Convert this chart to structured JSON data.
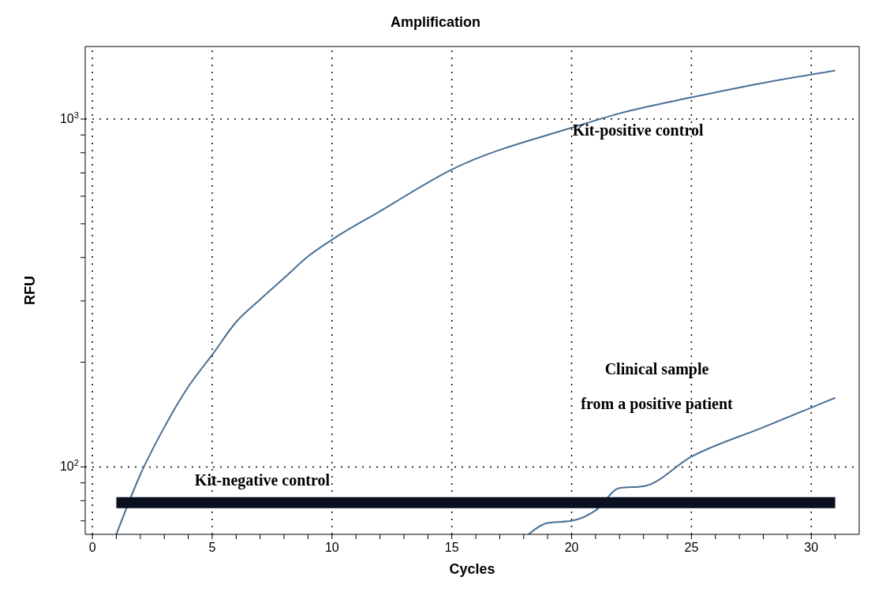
{
  "chart_data": {
    "type": "line",
    "title": "Amplification",
    "xlabel": "Cycles",
    "ylabel": "RFU",
    "log": "y",
    "grid": true,
    "xlim": [
      -0.3,
      32
    ],
    "ylim": [
      64,
      1616
    ],
    "xticks": [
      0,
      {
        "value": 1,
        "label": null
      },
      {
        "value": 2,
        "label": null
      },
      {
        "value": 3,
        "label": null
      },
      {
        "value": 4,
        "label": null
      },
      5,
      {
        "value": 6,
        "label": null
      },
      {
        "value": 7,
        "label": null
      },
      {
        "value": 8,
        "label": null
      },
      {
        "value": 9,
        "label": null
      },
      10,
      {
        "value": 11,
        "label": null
      },
      {
        "value": 12,
        "label": null
      },
      {
        "value": 13,
        "label": null
      },
      {
        "value": 14,
        "label": null
      },
      15,
      {
        "value": 16,
        "label": null
      },
      {
        "value": 17,
        "label": null
      },
      {
        "value": 18,
        "label": null
      },
      {
        "value": 19,
        "label": null
      },
      20,
      {
        "value": 21,
        "label": null
      },
      {
        "value": 22,
        "label": null
      },
      {
        "value": 23,
        "label": null
      },
      {
        "value": 24,
        "label": null
      },
      25,
      {
        "value": 26,
        "label": null
      },
      {
        "value": 27,
        "label": null
      },
      {
        "value": 28,
        "label": null
      },
      {
        "value": 29,
        "label": null
      },
      30,
      {
        "value": 31,
        "label": null
      }
    ],
    "yticks": [
      {
        "value": 70,
        "label": null
      },
      {
        "value": 80,
        "label": null
      },
      {
        "value": 90,
        "label": null
      },
      {
        "value": 100,
        "label": "10$^{2}$"
      },
      {
        "value": 200,
        "label": null
      },
      {
        "value": 300,
        "label": null
      },
      {
        "value": 400,
        "label": null
      },
      {
        "value": 500,
        "label": null
      },
      {
        "value": 600,
        "label": null
      },
      {
        "value": 700,
        "label": null
      },
      {
        "value": 800,
        "label": null
      },
      {
        "value": 900,
        "label": null
      },
      {
        "value": 1000,
        "label": "10$^{3}$"
      }
    ],
    "series": [
      {
        "name": "Kit-positive control",
        "color": "#4a6f96",
        "x": [
          1,
          2,
          3,
          4,
          5,
          6,
          7,
          8,
          9,
          10,
          12,
          15,
          20,
          22,
          25,
          28,
          31
        ],
        "values": [
          64,
          95,
          130,
          170,
          210,
          261,
          303,
          349,
          403,
          450,
          543,
          716,
          944,
          1038,
          1154,
          1270,
          1378
        ]
      },
      {
        "name": "Clinical sample\nfrom a positive patient",
        "color": "#4a6f96",
        "x": [
          18.2,
          19,
          20,
          21,
          22,
          23,
          25,
          28,
          31
        ],
        "values": [
          64,
          69,
          70,
          75,
          87,
          88,
          107,
          130,
          158
        ]
      },
      {
        "name": "Kit-negative control",
        "color": "#0b1020",
        "x": [
          1,
          31
        ],
        "values": [
          79,
          79
        ]
      }
    ]
  }
}
